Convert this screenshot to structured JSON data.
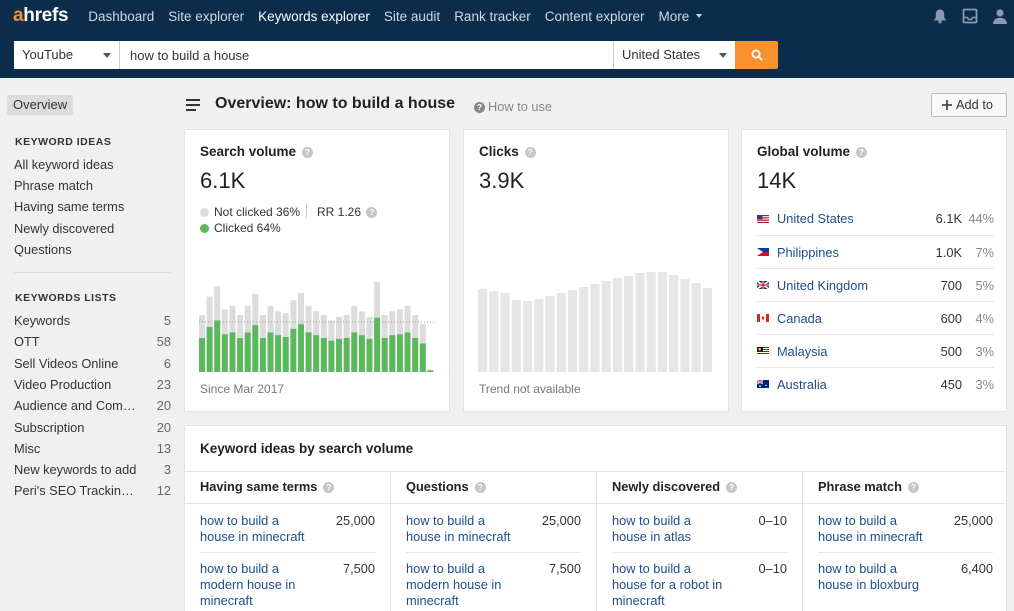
{
  "nav": {
    "logo_a": "a",
    "logo_rest": "hrefs",
    "items": [
      "Dashboard",
      "Site explorer",
      "Keywords explorer",
      "Site audit",
      "Rank tracker",
      "Content explorer",
      "More"
    ],
    "active_index": 2
  },
  "search": {
    "source": "YouTube",
    "query": "how to build a house",
    "country": "United States"
  },
  "sidebar": {
    "overview": "Overview",
    "ideas_header": "KEYWORD IDEAS",
    "ideas": [
      "All keyword ideas",
      "Phrase match",
      "Having same terms",
      "Newly discovered",
      "Questions"
    ],
    "lists_header": "KEYWORDS LISTS",
    "lists": [
      {
        "name": "Keywords",
        "count": "5"
      },
      {
        "name": "OTT",
        "count": "58"
      },
      {
        "name": "Sell Videos Online",
        "count": "6"
      },
      {
        "name": "Video Production",
        "count": "23"
      },
      {
        "name": "Audience and Com…",
        "count": "20"
      },
      {
        "name": "Subscription",
        "count": "20"
      },
      {
        "name": "Misc",
        "count": "13"
      },
      {
        "name": "New keywords to add",
        "count": "3"
      },
      {
        "name": "Peri's SEO Trackin…",
        "count": "12"
      }
    ]
  },
  "header": {
    "title": "Overview: how to build a house",
    "how_to_use": "How to use",
    "add_to": "Add to"
  },
  "search_volume": {
    "title": "Search volume",
    "value": "6.1K",
    "not_clicked": "Not clicked 36%",
    "clicked": "Clicked 64%",
    "rr": "RR 1.26",
    "since": "Since Mar 2017",
    "colors": {
      "clicked": "#5cb85c",
      "not_clicked": "#dcdcdc"
    },
    "bars_total": [
      0.62,
      0.82,
      0.93,
      0.68,
      0.72,
      0.62,
      0.72,
      0.85,
      0.62,
      0.72,
      0.66,
      0.64,
      0.78,
      0.86,
      0.72,
      0.66,
      0.62,
      0.56,
      0.6,
      0.62,
      0.72,
      0.66,
      0.6,
      0.98,
      0.62,
      0.66,
      0.68,
      0.72,
      0.62,
      0.52,
      0.02
    ],
    "bars_clicked": [
      0.37,
      0.49,
      0.56,
      0.41,
      0.43,
      0.37,
      0.43,
      0.51,
      0.37,
      0.43,
      0.4,
      0.38,
      0.47,
      0.52,
      0.43,
      0.4,
      0.37,
      0.34,
      0.36,
      0.37,
      0.43,
      0.4,
      0.36,
      0.59,
      0.37,
      0.4,
      0.41,
      0.43,
      0.37,
      0.31,
      0.02
    ]
  },
  "clicks": {
    "title": "Clicks",
    "value": "3.9K",
    "note": "Trend not available",
    "color": "#e6e6e6",
    "trend": [
      0.83,
      0.81,
      0.79,
      0.72,
      0.71,
      0.73,
      0.76,
      0.79,
      0.82,
      0.85,
      0.88,
      0.91,
      0.94,
      0.96,
      0.99,
      1.0,
      1.0,
      0.97,
      0.93,
      0.89,
      0.84
    ]
  },
  "global_volume": {
    "title": "Global volume",
    "value": "14K",
    "rows": [
      {
        "country": "United States",
        "volume": "6.1K",
        "pct": "44%",
        "flag": "us"
      },
      {
        "country": "Philippines",
        "volume": "1.0K",
        "pct": "7%",
        "flag": "ph"
      },
      {
        "country": "United Kingdom",
        "volume": "700",
        "pct": "5%",
        "flag": "gb"
      },
      {
        "country": "Canada",
        "volume": "600",
        "pct": "4%",
        "flag": "ca"
      },
      {
        "country": "Malaysia",
        "volume": "500",
        "pct": "3%",
        "flag": "my"
      },
      {
        "country": "Australia",
        "volume": "450",
        "pct": "3%",
        "flag": "au"
      }
    ]
  },
  "keyword_ideas": {
    "title": "Keyword ideas by search volume",
    "columns": [
      {
        "header": "Having same terms",
        "rows": [
          {
            "keyword": "how to build a house in minecraft",
            "volume": "25,000"
          },
          {
            "keyword": "how to build a modern house in minecraft",
            "volume": "7,500"
          }
        ]
      },
      {
        "header": "Questions",
        "rows": [
          {
            "keyword": "how to build a house in minecraft",
            "volume": "25,000"
          },
          {
            "keyword": "how to build a modern house in minecraft",
            "volume": "7,500"
          }
        ]
      },
      {
        "header": "Newly discovered",
        "rows": [
          {
            "keyword": "how to build a house in atlas",
            "volume": "0–10"
          },
          {
            "keyword": "how to build a house for a robot in minecraft",
            "volume": "0–10"
          }
        ]
      },
      {
        "header": "Phrase match",
        "rows": [
          {
            "keyword": "how to build a house in minecraft",
            "volume": "25,000"
          },
          {
            "keyword": "how to build a house in bloxburg",
            "volume": "6,400"
          }
        ]
      }
    ]
  }
}
